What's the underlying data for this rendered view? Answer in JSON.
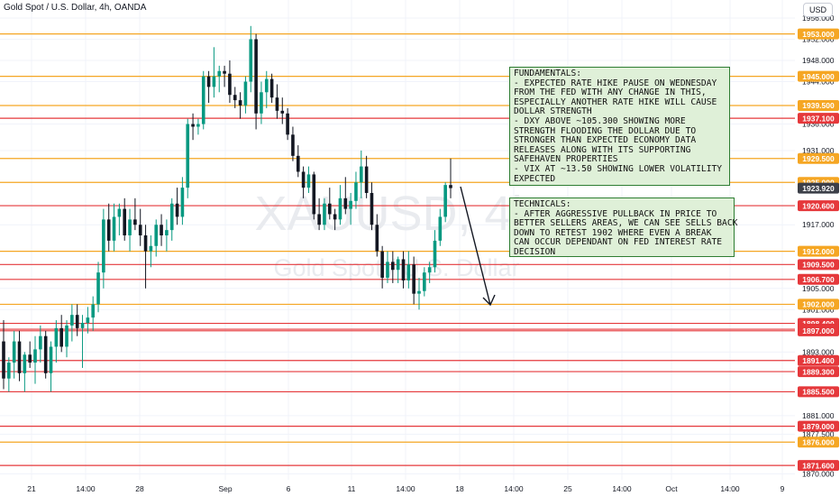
{
  "header": {
    "symbol_title": "Gold Spot / U.S. Dollar, 4h, OANDA",
    "currency_button": "USD"
  },
  "watermark": {
    "symbol": "XAUUSD, 4h",
    "name": "Gold Spot / U.S. Dollar"
  },
  "notes": {
    "fundamentals": "FUNDAMENTALS:\n- EXPECTED RATE HIKE PAUSE ON WEDNESDAY\nFROM THE FED WITH ANY CHANGE IN THIS,\nESPECIALLY ANOTHER RATE HIKE WILL CAUSE\nDOLLAR STRENGTH\n- DXY ABOVE ~105.300 SHOWING MORE\nSTRENGTH FLOODING THE DOLLAR DUE TO\nSTRONGER THAN EXPECTED ECONOMY DATA\nRELEASES ALONG WITH ITS SUPPORTING\nSAFEHAVEN PROPERTIES\n- VIX AT ~13.50 SHOWING LOWER VOLATILITY\nEXPECTED",
    "technicals": "TECHNICALS:\n- AFTER AGGRESSIVE PULLBACK IN PRICE TO\nBETTER SELLERS AREAS, WE CAN SEE SELLS BACK\nDOWN TO RETEST 1902 WHERE EVEN A BREAK\nCAN OCCUR DEPENDANT ON FED INTEREST RATE\nDECISION"
  },
  "colors": {
    "bull": "#089981",
    "bear": "#131722",
    "orange": "#f5a623",
    "red": "#e5383b",
    "price_tag": "#3c3f48",
    "axis_text": "#131722",
    "grid": "#f0f3fa"
  },
  "chart_data": {
    "type": "candlestick",
    "ylim": [
      1868.9,
      1959.4
    ],
    "price_axis_ticks": [
      "1956.000",
      "1952.000",
      "1948.000",
      "1944.000",
      "1936.000",
      "1931.000",
      "1917.000",
      "1912.000",
      "1905.000",
      "1901.000",
      "1893.000",
      "1881.000",
      "1877.500",
      "1870.000"
    ],
    "time_axis_labels": [
      "21",
      "14:00",
      "28",
      "Sep",
      "6",
      "11",
      "14:00",
      "18",
      "14:00",
      "25",
      "14:00",
      "Oct",
      "14:00",
      "9"
    ],
    "levels": [
      {
        "price": 1953.0,
        "label": "1953.000",
        "color": "orange"
      },
      {
        "price": 1945.0,
        "label": "1945.000",
        "color": "orange"
      },
      {
        "price": 1939.5,
        "label": "1939.500",
        "color": "orange"
      },
      {
        "price": 1937.1,
        "label": "1937.100",
        "color": "red"
      },
      {
        "price": 1929.5,
        "label": "1929.500",
        "color": "orange"
      },
      {
        "price": 1925.0,
        "label": "1925.000",
        "color": "orange"
      },
      {
        "price": 1920.6,
        "label": "1920.600",
        "color": "red"
      },
      {
        "price": 1912.0,
        "label": "1912.000",
        "color": "orange"
      },
      {
        "price": 1909.5,
        "label": "1909.500",
        "color": "red"
      },
      {
        "price": 1906.7,
        "label": "1906.700",
        "color": "red"
      },
      {
        "price": 1902.0,
        "label": "1902.000",
        "color": "orange"
      },
      {
        "price": 1898.4,
        "label": "1898.400",
        "color": "red"
      },
      {
        "price": 1897.3,
        "label": "1897.300",
        "color": "red"
      },
      {
        "price": 1897.0,
        "label": "1897.000",
        "color": "red"
      },
      {
        "price": 1891.4,
        "label": "1891.400",
        "color": "red"
      },
      {
        "price": 1889.3,
        "label": "1889.300",
        "color": "red"
      },
      {
        "price": 1885.5,
        "label": "1885.500",
        "color": "red"
      },
      {
        "price": 1879.0,
        "label": "1879.000",
        "color": "red"
      },
      {
        "price": 1876.0,
        "label": "1876.000",
        "color": "orange"
      },
      {
        "price": 1871.6,
        "label": "1871.600",
        "color": "red"
      }
    ],
    "current_price": {
      "price": 1923.92,
      "label": "1923.920"
    },
    "candles": [
      [
        1895.0,
        1899.0,
        1886.0,
        1888.0
      ],
      [
        1888.0,
        1892.0,
        1885.5,
        1891.0
      ],
      [
        1891.0,
        1897.0,
        1888.0,
        1895.0
      ],
      [
        1895.0,
        1897.0,
        1887.5,
        1889.0
      ],
      [
        1889.0,
        1893.0,
        1885.5,
        1892.5
      ],
      [
        1892.5,
        1895.0,
        1890.0,
        1891.0
      ],
      [
        1891.0,
        1896.0,
        1887.0,
        1893.5
      ],
      [
        1893.5,
        1898.0,
        1891.0,
        1896.0
      ],
      [
        1896.0,
        1897.0,
        1888.0,
        1889.0
      ],
      [
        1889.0,
        1895.0,
        1885.5,
        1894.0
      ],
      [
        1894.0,
        1899.0,
        1891.0,
        1897.5
      ],
      [
        1897.5,
        1900.0,
        1893.0,
        1894.0
      ],
      [
        1894.0,
        1899.0,
        1892.0,
        1898.0
      ],
      [
        1898.0,
        1902.0,
        1895.0,
        1900.0
      ],
      [
        1900.0,
        1902.0,
        1896.0,
        1897.5
      ],
      [
        1897.5,
        1900.0,
        1890.0,
        1898.5
      ],
      [
        1898.5,
        1901.5,
        1896.5,
        1899.5
      ],
      [
        1899.5,
        1903.5,
        1897.0,
        1902.0
      ],
      [
        1902.0,
        1910.0,
        1900.5,
        1908.0
      ],
      [
        1908.0,
        1920.0,
        1905.0,
        1918.0
      ],
      [
        1918.0,
        1921.0,
        1912.0,
        1914.0
      ],
      [
        1914.0,
        1921.0,
        1912.0,
        1918.5
      ],
      [
        1918.5,
        1921.0,
        1915.0,
        1920.0
      ],
      [
        1920.0,
        1922.0,
        1914.0,
        1915.0
      ],
      [
        1915.0,
        1920.0,
        1912.0,
        1918.0
      ],
      [
        1918.0,
        1922.0,
        1916.0,
        1917.0
      ],
      [
        1917.0,
        1920.0,
        1913.0,
        1915.0
      ],
      [
        1915.0,
        1917.0,
        1905.0,
        1912.0
      ],
      [
        1912.0,
        1915.0,
        1909.0,
        1913.0
      ],
      [
        1913.0,
        1918.0,
        1911.0,
        1917.0
      ],
      [
        1917.0,
        1919.0,
        1913.0,
        1915.0
      ],
      [
        1915.0,
        1918.0,
        1912.0,
        1916.0
      ],
      [
        1916.0,
        1922.0,
        1914.0,
        1921.0
      ],
      [
        1921.0,
        1924.0,
        1917.0,
        1918.5
      ],
      [
        1918.5,
        1926.0,
        1917.0,
        1924.0
      ],
      [
        1924.0,
        1937.0,
        1922.0,
        1936.0
      ],
      [
        1936.0,
        1938.0,
        1933.0,
        1935.5
      ],
      [
        1935.5,
        1937.0,
        1934.0,
        1936.0
      ],
      [
        1936.0,
        1946.0,
        1935.0,
        1945.0
      ],
      [
        1945.0,
        1946.0,
        1940.0,
        1943.0
      ],
      [
        1943.0,
        1950.5,
        1941.0,
        1945.0
      ],
      [
        1945.0,
        1947.0,
        1942.0,
        1946.0
      ],
      [
        1946.0,
        1947.0,
        1943.0,
        1945.5
      ],
      [
        1945.5,
        1948.0,
        1940.0,
        1941.5
      ],
      [
        1941.5,
        1943.0,
        1939.0,
        1940.5
      ],
      [
        1940.5,
        1942.0,
        1937.0,
        1939.5
      ],
      [
        1939.5,
        1945.0,
        1938.0,
        1944.0
      ],
      [
        1944.0,
        1954.5,
        1942.0,
        1952.0
      ],
      [
        1952.0,
        1953.0,
        1935.0,
        1938.0
      ],
      [
        1938.0,
        1944.0,
        1936.0,
        1942.0
      ],
      [
        1942.0,
        1946.0,
        1939.0,
        1944.5
      ],
      [
        1944.5,
        1945.5,
        1940.0,
        1941.0
      ],
      [
        1941.0,
        1943.5,
        1937.0,
        1938.5
      ],
      [
        1938.5,
        1941.0,
        1936.0,
        1938.0
      ],
      [
        1938.0,
        1939.0,
        1933.0,
        1934.0
      ],
      [
        1934.0,
        1935.5,
        1929.0,
        1930.0
      ],
      [
        1930.0,
        1932.0,
        1926.0,
        1927.0
      ],
      [
        1927.0,
        1928.0,
        1922.0,
        1924.0
      ],
      [
        1924.0,
        1928.0,
        1923.0,
        1926.5
      ],
      [
        1926.5,
        1927.0,
        1918.0,
        1919.0
      ],
      [
        1919.0,
        1922.0,
        1916.0,
        1917.0
      ],
      [
        1917.0,
        1922.0,
        1916.0,
        1921.0
      ],
      [
        1921.0,
        1924.0,
        1918.0,
        1919.0
      ],
      [
        1919.0,
        1920.0,
        1916.0,
        1918.0
      ],
      [
        1918.0,
        1924.5,
        1917.0,
        1922.0
      ],
      [
        1922.0,
        1926.0,
        1919.0,
        1920.0
      ],
      [
        1920.0,
        1923.0,
        1917.0,
        1921.5
      ],
      [
        1921.5,
        1927.0,
        1920.0,
        1925.0
      ],
      [
        1925.0,
        1931.0,
        1922.0,
        1928.0
      ],
      [
        1928.0,
        1930.0,
        1922.0,
        1923.0
      ],
      [
        1923.0,
        1925.0,
        1916.0,
        1917.0
      ],
      [
        1917.0,
        1919.0,
        1911.0,
        1912.0
      ],
      [
        1912.0,
        1913.0,
        1905.0,
        1907.0
      ],
      [
        1907.0,
        1912.0,
        1906.0,
        1910.0
      ],
      [
        1910.0,
        1912.0,
        1906.0,
        1908.5
      ],
      [
        1908.5,
        1911.0,
        1906.0,
        1910.5
      ],
      [
        1910.5,
        1912.0,
        1905.0,
        1906.5
      ],
      [
        1906.5,
        1912.0,
        1905.0,
        1909.5
      ],
      [
        1909.5,
        1911.0,
        1902.0,
        1904.0
      ],
      [
        1904.0,
        1907.0,
        1901.0,
        1904.5
      ],
      [
        1904.5,
        1909.0,
        1903.5,
        1908.0
      ],
      [
        1908.0,
        1910.0,
        1906.0,
        1909.0
      ],
      [
        1909.0,
        1916.0,
        1908.0,
        1914.0
      ],
      [
        1914.0,
        1920.0,
        1913.0,
        1918.5
      ],
      [
        1918.5,
        1925.0,
        1917.5,
        1924.5
      ],
      [
        1924.5,
        1929.5,
        1922.0,
        1923.92
      ]
    ]
  }
}
